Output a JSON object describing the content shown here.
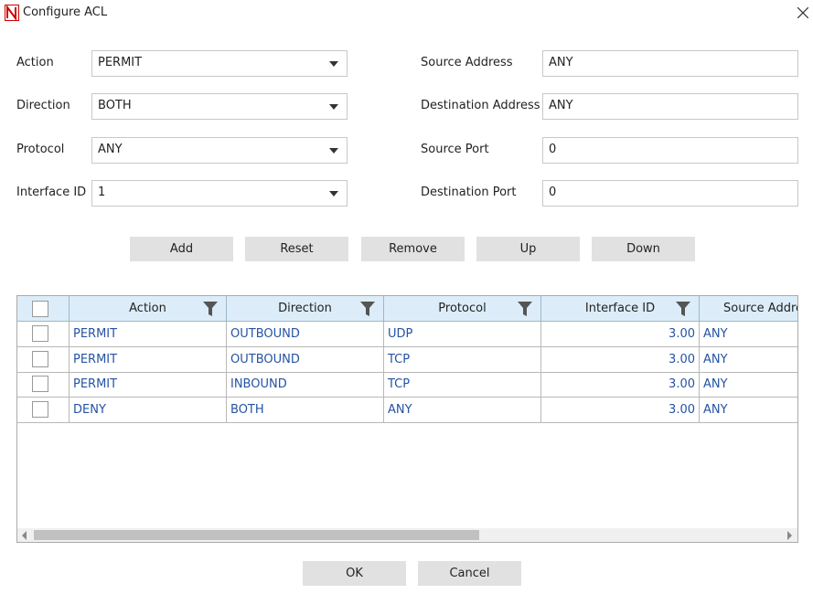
{
  "window": {
    "title": "Configure ACL"
  },
  "form": {
    "left": [
      {
        "label": "Action",
        "value": "PERMIT"
      },
      {
        "label": "Direction",
        "value": "BOTH"
      },
      {
        "label": "Protocol",
        "value": "ANY"
      },
      {
        "label": "Interface ID",
        "value": "1"
      }
    ],
    "right": [
      {
        "label": "Source Address",
        "value": "ANY"
      },
      {
        "label": "Destination Address",
        "value": "ANY"
      },
      {
        "label": "Source Port",
        "value": "0"
      },
      {
        "label": "Destination Port",
        "value": "0"
      }
    ]
  },
  "buttons": [
    "Add",
    "Reset",
    "Remove",
    "Up",
    "Down"
  ],
  "table": {
    "columns": [
      "Action",
      "Direction",
      "Protocol",
      "Interface ID",
      "Source Address"
    ],
    "rows": [
      [
        "PERMIT",
        "OUTBOUND",
        "UDP",
        "3.00",
        "ANY"
      ],
      [
        "PERMIT",
        "OUTBOUND",
        "TCP",
        "3.00",
        "ANY"
      ],
      [
        "PERMIT",
        "INBOUND",
        "TCP",
        "3.00",
        "ANY"
      ],
      [
        "DENY",
        "BOTH",
        "ANY",
        "3.00",
        "ANY"
      ]
    ]
  },
  "footer": {
    "buttons": [
      "OK",
      "Cancel"
    ]
  }
}
